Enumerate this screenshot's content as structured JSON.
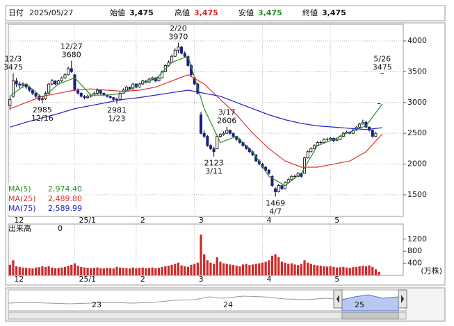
{
  "header": {
    "date_label": "日付",
    "date": "2025/05/27",
    "fields": [
      {
        "label": "始値",
        "value": "3,475",
        "color": "#111111"
      },
      {
        "label": "高値",
        "value": "3,475",
        "color": "#e02020"
      },
      {
        "label": "安値",
        "value": "3,475",
        "color": "#208a20"
      },
      {
        "label": "終値",
        "value": "3,475",
        "color": "#111111"
      }
    ]
  },
  "chart_data": {
    "type": "candlestick",
    "up_color": "#ffffff",
    "down_color": "#1c1c8a",
    "outline_color": "#000000",
    "candles": [
      [
        2950,
        3100,
        2880,
        3050
      ],
      [
        3100,
        3475,
        3080,
        3350
      ],
      [
        3350,
        3400,
        3250,
        3300
      ],
      [
        3300,
        3340,
        3230,
        3280
      ],
      [
        3280,
        3330,
        3240,
        3300
      ],
      [
        3300,
        3310,
        3220,
        3250
      ],
      [
        3250,
        3270,
        3170,
        3200
      ],
      [
        3200,
        3220,
        3120,
        3150
      ],
      [
        3150,
        3170,
        3070,
        3100
      ],
      [
        3100,
        3130,
        3020,
        3050
      ],
      [
        3050,
        3090,
        2985,
        3060
      ],
      [
        3060,
        3180,
        3040,
        3150
      ],
      [
        3150,
        3320,
        3140,
        3300
      ],
      [
        3300,
        3380,
        3280,
        3350
      ],
      [
        3350,
        3360,
        3280,
        3300
      ],
      [
        3300,
        3370,
        3290,
        3350
      ],
      [
        3350,
        3420,
        3330,
        3400
      ],
      [
        3400,
        3480,
        3380,
        3450
      ],
      [
        3450,
        3580,
        3440,
        3550
      ],
      [
        3550,
        3680,
        3480,
        3500
      ],
      [
        3450,
        3460,
        3180,
        3200
      ],
      [
        3200,
        3230,
        3130,
        3150
      ],
      [
        3150,
        3170,
        3080,
        3100
      ],
      [
        3100,
        3120,
        3050,
        3080
      ],
      [
        3080,
        3130,
        3060,
        3100
      ],
      [
        3100,
        3140,
        3080,
        3120
      ],
      [
        3120,
        3180,
        3100,
        3150
      ],
      [
        3150,
        3230,
        3130,
        3200
      ],
      [
        3200,
        3210,
        3130,
        3150
      ],
      [
        3150,
        3160,
        3100,
        3120
      ],
      [
        3120,
        3140,
        3080,
        3100
      ],
      [
        3100,
        3110,
        3060,
        3080
      ],
      [
        3080,
        3090,
        3030,
        3050
      ],
      [
        3050,
        3080,
        2981,
        3050
      ],
      [
        3050,
        3170,
        3040,
        3150
      ],
      [
        3150,
        3230,
        3140,
        3200
      ],
      [
        3200,
        3270,
        3190,
        3250
      ],
      [
        3250,
        3260,
        3200,
        3220
      ],
      [
        3220,
        3320,
        3210,
        3300
      ],
      [
        3300,
        3310,
        3230,
        3250
      ],
      [
        3250,
        3320,
        3240,
        3300
      ],
      [
        3300,
        3370,
        3290,
        3350
      ],
      [
        3350,
        3360,
        3310,
        3330
      ],
      [
        3330,
        3400,
        3320,
        3380
      ],
      [
        3380,
        3420,
        3360,
        3400
      ],
      [
        3400,
        3410,
        3330,
        3350
      ],
      [
        3350,
        3420,
        3340,
        3400
      ],
      [
        3400,
        3520,
        3390,
        3500
      ],
      [
        3500,
        3620,
        3490,
        3600
      ],
      [
        3600,
        3680,
        3580,
        3650
      ],
      [
        3650,
        3780,
        3640,
        3750
      ],
      [
        3750,
        3880,
        3740,
        3850
      ],
      [
        3850,
        3970,
        3800,
        3900
      ],
      [
        3900,
        3920,
        3780,
        3800
      ],
      [
        3800,
        3830,
        3720,
        3750
      ],
      [
        3750,
        3760,
        3580,
        3600
      ],
      [
        3600,
        3620,
        3430,
        3450
      ],
      [
        3400,
        3420,
        3280,
        3300
      ],
      [
        3300,
        3320,
        3130,
        3150
      ],
      [
        2800,
        2850,
        2480,
        2500
      ],
      [
        2500,
        2550,
        2420,
        2450
      ],
      [
        2450,
        2470,
        2280,
        2300
      ],
      [
        2300,
        2330,
        2230,
        2250
      ],
      [
        2250,
        2280,
        2123,
        2200
      ],
      [
        2250,
        2470,
        2240,
        2450
      ],
      [
        2450,
        2500,
        2430,
        2480
      ],
      [
        2480,
        2530,
        2460,
        2500
      ],
      [
        2500,
        2606,
        2490,
        2550
      ],
      [
        2550,
        2560,
        2480,
        2500
      ],
      [
        2500,
        2510,
        2430,
        2450
      ],
      [
        2450,
        2460,
        2380,
        2400
      ],
      [
        2400,
        2420,
        2330,
        2350
      ],
      [
        2350,
        2360,
        2280,
        2300
      ],
      [
        2300,
        2310,
        2230,
        2250
      ],
      [
        2250,
        2270,
        2180,
        2200
      ],
      [
        2200,
        2220,
        2130,
        2150
      ],
      [
        2150,
        2160,
        2030,
        2050
      ],
      [
        2050,
        2080,
        1980,
        2000
      ],
      [
        2000,
        2020,
        1930,
        1950
      ],
      [
        1950,
        1970,
        1880,
        1900
      ],
      [
        1900,
        1920,
        1830,
        1850
      ],
      [
        1800,
        1820,
        1630,
        1650
      ],
      [
        1600,
        1620,
        1469,
        1550
      ],
      [
        1550,
        1680,
        1540,
        1650
      ],
      [
        1650,
        1660,
        1580,
        1600
      ],
      [
        1600,
        1720,
        1590,
        1700
      ],
      [
        1700,
        1770,
        1690,
        1750
      ],
      [
        1750,
        1820,
        1740,
        1800
      ],
      [
        1800,
        1830,
        1770,
        1800
      ],
      [
        1800,
        1870,
        1790,
        1850
      ],
      [
        1850,
        1860,
        1780,
        1800
      ],
      [
        1850,
        2120,
        1840,
        2100
      ],
      [
        2100,
        2220,
        2090,
        2200
      ],
      [
        2200,
        2270,
        2190,
        2250
      ],
      [
        2250,
        2320,
        2240,
        2300
      ],
      [
        2300,
        2370,
        2290,
        2350
      ],
      [
        2350,
        2380,
        2320,
        2350
      ],
      [
        2350,
        2420,
        2340,
        2400
      ],
      [
        2400,
        2430,
        2370,
        2400
      ],
      [
        2400,
        2440,
        2390,
        2420
      ],
      [
        2420,
        2430,
        2360,
        2380
      ],
      [
        2380,
        2420,
        2370,
        2400
      ],
      [
        2400,
        2470,
        2390,
        2450
      ],
      [
        2450,
        2520,
        2440,
        2500
      ],
      [
        2500,
        2540,
        2490,
        2520
      ],
      [
        2520,
        2530,
        2480,
        2500
      ],
      [
        2500,
        2570,
        2490,
        2550
      ],
      [
        2550,
        2620,
        2540,
        2600
      ],
      [
        2600,
        2670,
        2590,
        2650
      ],
      [
        2650,
        2720,
        2640,
        2680
      ],
      [
        2680,
        2700,
        2580,
        2600
      ],
      [
        2600,
        2610,
        2530,
        2550
      ],
      [
        2550,
        2560,
        2430,
        2450
      ],
      [
        2450,
        2520,
        2440,
        2500
      ],
      [
        2980,
        2980,
        2980,
        2980
      ],
      [
        3475,
        3475,
        3475,
        3475
      ]
    ],
    "xlim": [
      -0.5,
      121.5
    ],
    "xticks": [
      {
        "value": 0,
        "label": "12"
      },
      {
        "value": 20,
        "label": "25/1"
      },
      {
        "value": 39,
        "label": "2"
      },
      {
        "value": 57,
        "label": "3"
      },
      {
        "value": 78,
        "label": "4"
      },
      {
        "value": 99,
        "label": "5"
      }
    ],
    "ylim": [
      1150,
      4270
    ],
    "yticks": [
      1500,
      2000,
      2500,
      3000,
      3500,
      4000
    ],
    "grid": true,
    "legend": "bottom-left",
    "series": [
      {
        "name": "MA(5)",
        "color": "#2a8a2a",
        "value_label": "2,974.40",
        "x": [
          0,
          5,
          10,
          15,
          20,
          25,
          30,
          35,
          40,
          45,
          50,
          55,
          60,
          65,
          70,
          75,
          80,
          85,
          90,
          95,
          100,
          105,
          110,
          115
        ],
        "values": [
          3100,
          3300,
          3080,
          3300,
          3400,
          3120,
          3120,
          3150,
          3300,
          3380,
          3650,
          3750,
          2900,
          2350,
          2450,
          2200,
          1800,
          1650,
          1850,
          2300,
          2400,
          2520,
          2620,
          2974.4
        ]
      },
      {
        "name": "MA(25)",
        "color": "#e03030",
        "value_label": "2,489.80",
        "x": [
          0,
          5,
          10,
          15,
          20,
          25,
          30,
          35,
          40,
          45,
          50,
          55,
          60,
          65,
          70,
          75,
          80,
          85,
          90,
          95,
          100,
          105,
          110,
          115
        ],
        "values": [
          2900,
          3000,
          3100,
          3150,
          3200,
          3220,
          3200,
          3180,
          3200,
          3250,
          3350,
          3450,
          3300,
          3050,
          2800,
          2500,
          2250,
          2050,
          1950,
          1950,
          2000,
          2050,
          2200,
          2489.8
        ]
      },
      {
        "name": "MA(75)",
        "color": "#2020d0",
        "value_label": "2,589.99",
        "x": [
          0,
          5,
          10,
          15,
          20,
          25,
          30,
          35,
          40,
          45,
          50,
          55,
          60,
          65,
          70,
          75,
          80,
          85,
          90,
          95,
          100,
          105,
          110,
          115
        ],
        "values": [
          2600,
          2680,
          2750,
          2820,
          2900,
          2950,
          3000,
          3050,
          3080,
          3120,
          3160,
          3200,
          3150,
          3100,
          3000,
          2900,
          2800,
          2720,
          2660,
          2620,
          2600,
          2580,
          2560,
          2589.99
        ]
      }
    ],
    "high_annotations": [
      {
        "date": "12/3",
        "price": 3475,
        "x": 1
      },
      {
        "date": "12/27",
        "price": 3680,
        "x": 19
      },
      {
        "date": "2/20",
        "price": 3970,
        "x": 52
      },
      {
        "date": "3/17",
        "price": 2606,
        "x": 67
      },
      {
        "date": "5/26",
        "price": 3475,
        "x": 115
      }
    ],
    "low_annotations": [
      {
        "date": "12/16",
        "price": 2985,
        "x": 10
      },
      {
        "date": "1/23",
        "price": 2981,
        "x": 33
      },
      {
        "date": "3/11",
        "price": 2123,
        "x": 63
      },
      {
        "date": "4/7",
        "price": 1469,
        "x": 82
      }
    ]
  },
  "volume": {
    "type": "bar",
    "title": "出来高",
    "current": 0,
    "unit": "(万株)",
    "color": "#d02828",
    "ylim": [
      0,
      1700
    ],
    "yticks": [
      400,
      800,
      1200
    ],
    "values": [
      350,
      500,
      300,
      280,
      260,
      250,
      240,
      230,
      260,
      270,
      300,
      280,
      300,
      260,
      240,
      250,
      260,
      280,
      320,
      350,
      400,
      320,
      280,
      260,
      250,
      240,
      250,
      260,
      240,
      230,
      250,
      240,
      230,
      280,
      260,
      250,
      240,
      230,
      260,
      240,
      250,
      260,
      240,
      250,
      260,
      240,
      250,
      280,
      300,
      320,
      350,
      380,
      420,
      330,
      300,
      280,
      350,
      380,
      420,
      1350,
      700,
      500,
      420,
      380,
      600,
      450,
      400,
      380,
      360,
      340,
      320,
      300,
      360,
      380,
      340,
      360,
      380,
      400,
      420,
      450,
      500,
      650,
      700,
      600,
      450,
      420,
      380,
      400,
      360,
      340,
      380,
      500,
      420,
      380,
      350,
      330,
      320,
      300,
      290,
      300,
      280,
      260,
      270,
      280,
      260,
      250,
      270,
      280,
      300,
      320,
      300,
      330,
      280,
      200,
      120,
      0
    ]
  },
  "navigator": {
    "labels": [
      "23",
      "24",
      "25"
    ]
  }
}
